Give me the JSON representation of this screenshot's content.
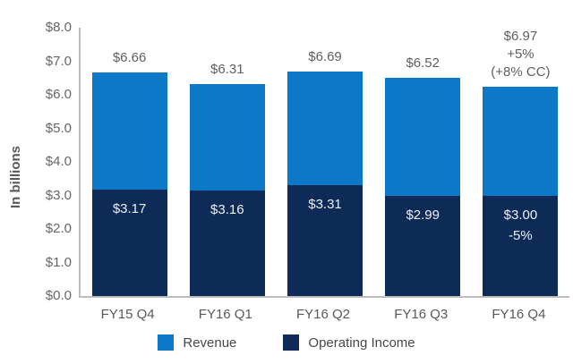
{
  "chart_data": {
    "type": "bar",
    "subtype": "overlaid-bars",
    "title": "",
    "y_axis_title": "In billions",
    "categories": [
      "FY15 Q4",
      "FY16 Q1",
      "FY16 Q2",
      "FY16 Q3",
      "FY16 Q4"
    ],
    "series": [
      {
        "name": "Revenue",
        "color": "#0e78c8",
        "values": [
          6.66,
          6.31,
          6.69,
          6.52,
          6.97
        ]
      },
      {
        "name": "Operating Income",
        "color": "#0e2a56",
        "values": [
          3.17,
          3.16,
          3.31,
          2.99,
          3.0
        ]
      }
    ],
    "bar_top_labels": [
      "$6.66",
      "$6.31",
      "$6.69",
      "$6.52",
      "$6.97\n+5%\n(+8% CC)"
    ],
    "bar_inner_labels": [
      "$3.17",
      "$3.16",
      "$3.31",
      "$2.99",
      "$3.00\n-5%"
    ],
    "annotations": [
      "+5%",
      "(+8% CC)",
      "-5%"
    ],
    "y_ticks": [
      "$8.0",
      "$7.0",
      "$6.0",
      "$5.0",
      "$4.0",
      "$3.0",
      "$2.0",
      "$1.0",
      "$0.0"
    ],
    "ylim": [
      0,
      8
    ],
    "grid": false,
    "legend_position": "bottom",
    "legend": [
      {
        "label": "Revenue",
        "color": "#0e78c8"
      },
      {
        "label": "Operating Income",
        "color": "#0e2a56"
      }
    ]
  },
  "colors": {
    "revenue": "#0e78c8",
    "operating_income": "#0e2a56",
    "axis_line": "#bdbdbd",
    "tick_text": "#666666",
    "label_text": "#5f5f5f",
    "inner_label_text": "#eef0f6",
    "legend_text": "#474747"
  }
}
